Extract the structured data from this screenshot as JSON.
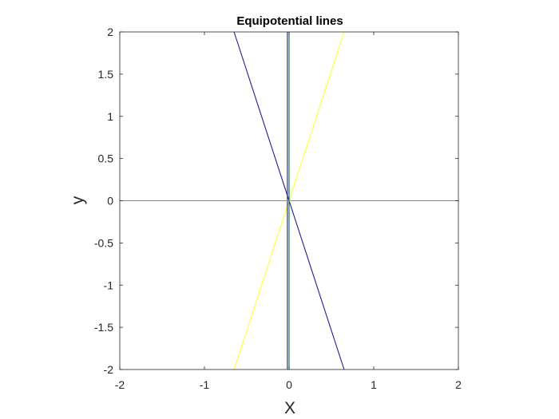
{
  "chart_data": {
    "type": "line",
    "title": "Equipotential lines",
    "xlabel": "X",
    "ylabel": "y",
    "xlim": [
      -2,
      2
    ],
    "ylim": [
      -2,
      2
    ],
    "x_ticks": [
      "-2",
      "-1",
      "0",
      "1",
      "2"
    ],
    "y_ticks": [
      "2",
      "1.5",
      "1",
      "0.5",
      "0",
      "-0.5",
      "-1",
      "-1.5",
      "-2"
    ],
    "grid": false,
    "box": true,
    "series": [
      {
        "color": "#1f1f8f",
        "points": [
          [
            -0.65,
            2
          ],
          [
            0.65,
            -2
          ]
        ]
      },
      {
        "color": "#ffff33",
        "points": [
          [
            -0.65,
            -2
          ],
          [
            0.65,
            2
          ]
        ]
      },
      {
        "color": "#0a6f2e",
        "points": [
          [
            0,
            -2
          ],
          [
            0,
            2
          ]
        ]
      },
      {
        "color": "#1f1f8f",
        "points": [
          [
            -0.02,
            -2
          ],
          [
            -0.02,
            2
          ]
        ]
      },
      {
        "color": "#2ab0c8",
        "points": [
          [
            -2,
            0
          ],
          [
            2,
            0
          ]
        ]
      }
    ]
  }
}
